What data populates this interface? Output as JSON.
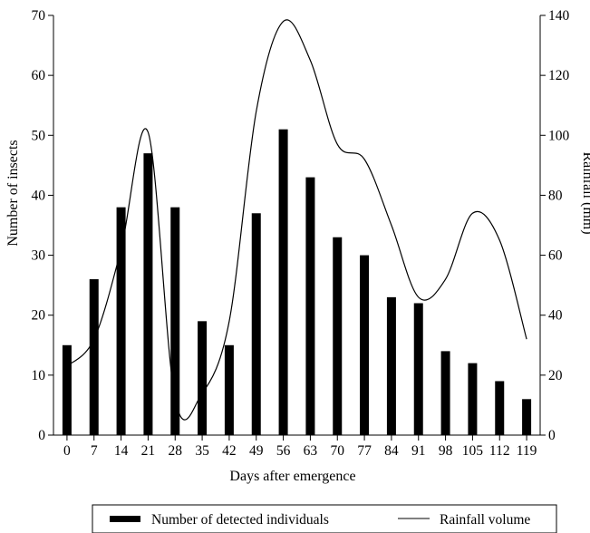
{
  "chart_data": {
    "type": "bar+line",
    "categories": [
      "0",
      "7",
      "14",
      "21",
      "28",
      "35",
      "42",
      "49",
      "56",
      "63",
      "70",
      "77",
      "84",
      "91",
      "98",
      "105",
      "112",
      "119"
    ],
    "xlabel": "Days after emergence",
    "ylabel_left": "Number of insects",
    "ylabel_right": "Rainfall (mm)",
    "ylim_left": [
      0,
      70
    ],
    "yticks_left": [
      0,
      10,
      20,
      30,
      40,
      50,
      60,
      70
    ],
    "ylim_right": [
      0,
      140
    ],
    "yticks_right": [
      0,
      20,
      40,
      60,
      80,
      100,
      120,
      140
    ],
    "grid": false,
    "legend_position": "bottom",
    "series": [
      {
        "name": "Number of detected individuals",
        "type": "bar",
        "axis": "left",
        "color": "#000000",
        "values": [
          15,
          26,
          38,
          47,
          38,
          19,
          15,
          37,
          51,
          43,
          33,
          30,
          23,
          22,
          14,
          12,
          9,
          6
        ]
      },
      {
        "name": "Rainfall volume",
        "type": "line",
        "axis": "right",
        "color": "#000000",
        "values": [
          23,
          32,
          62,
          101,
          12,
          14,
          38,
          108,
          138,
          125,
          97,
          92,
          70,
          46,
          52,
          74,
          65,
          32
        ]
      }
    ]
  }
}
